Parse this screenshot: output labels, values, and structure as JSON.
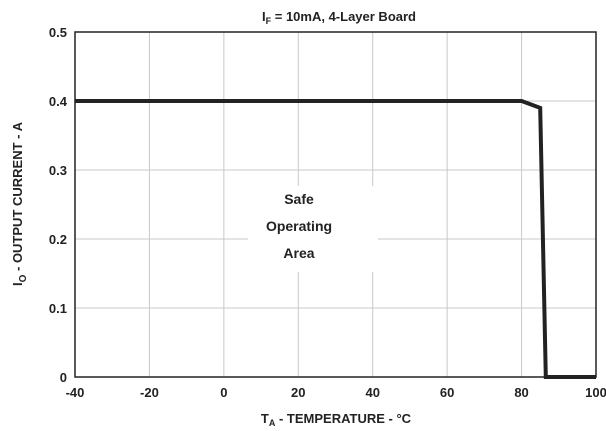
{
  "chart_data": {
    "type": "line",
    "title_main": "I",
    "title_sub": "F",
    "title_rest": " = 10mA, 4-Layer Board",
    "xlabel_main": "T",
    "xlabel_sub": "A",
    "xlabel_rest": " - TEMPERATURE - °C",
    "ylabel_main": "I",
    "ylabel_sub": "O",
    "ylabel_rest": " - OUTPUT CURRENT - A",
    "xlim": [
      -40,
      100
    ],
    "ylim": [
      0,
      0.5
    ],
    "x_ticks": [
      -40,
      -20,
      0,
      20,
      40,
      60,
      80,
      100
    ],
    "x_tick_labels": [
      "-40",
      "-20",
      "0",
      "20",
      "40",
      "60",
      "80",
      "100"
    ],
    "y_ticks": [
      0,
      0.1,
      0.2,
      0.3,
      0.4,
      0.5
    ],
    "y_tick_labels": [
      "0",
      "0.1",
      "0.2",
      "0.3",
      "0.4",
      "0.5"
    ],
    "grid": true,
    "series": [
      {
        "x": [
          -40,
          80,
          85,
          86.5,
          100
        ],
        "y": [
          0.4,
          0.4,
          0.39,
          0,
          0
        ]
      }
    ],
    "annotation": [
      "Safe",
      "Operating",
      "Area"
    ],
    "line_color": "#222222"
  }
}
